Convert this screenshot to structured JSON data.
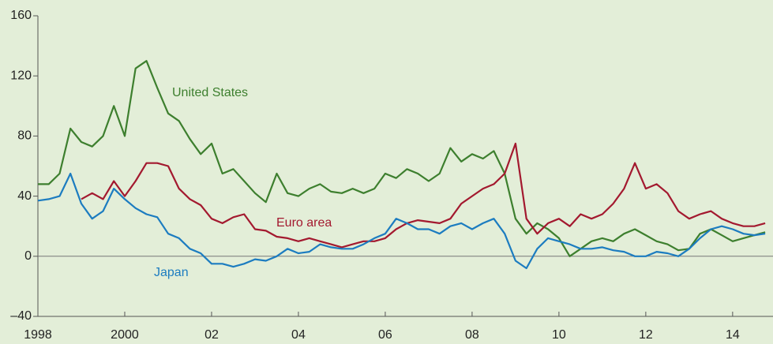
{
  "chart_data": {
    "type": "line",
    "x": [
      1998,
      1998.25,
      1998.5,
      1998.75,
      1999,
      1999.25,
      1999.5,
      1999.75,
      2000,
      2000.25,
      2000.5,
      2000.75,
      2001,
      2001.25,
      2001.5,
      2001.75,
      2002,
      2002.25,
      2002.5,
      2002.75,
      2003,
      2003.25,
      2003.5,
      2003.75,
      2004,
      2004.25,
      2004.5,
      2004.75,
      2005,
      2005.25,
      2005.5,
      2005.75,
      2006,
      2006.25,
      2006.5,
      2006.75,
      2007,
      2007.25,
      2007.5,
      2007.75,
      2008,
      2008.25,
      2008.5,
      2008.75,
      2009,
      2009.25,
      2009.5,
      2009.75,
      2010,
      2010.25,
      2010.5,
      2010.75,
      2011,
      2011.25,
      2011.5,
      2011.75,
      2012,
      2012.25,
      2012.5,
      2012.75,
      2013,
      2013.25,
      2013.5,
      2013.75,
      2014,
      2014.25,
      2014.5,
      2014.75
    ],
    "series": [
      {
        "name": "United States",
        "color": "#3d7f2e",
        "values": [
          48,
          48,
          55,
          85,
          76,
          73,
          80,
          100,
          80,
          125,
          130,
          112,
          95,
          90,
          78,
          68,
          75,
          55,
          58,
          50,
          42,
          36,
          55,
          42,
          40,
          45,
          48,
          43,
          42,
          45,
          42,
          45,
          55,
          52,
          58,
          55,
          50,
          55,
          72,
          63,
          68,
          65,
          70,
          55,
          25,
          15,
          22,
          18,
          12,
          0,
          5,
          10,
          12,
          10,
          15,
          18,
          14,
          10,
          8,
          4,
          5,
          15,
          18,
          14,
          10,
          12,
          14,
          16
        ]
      },
      {
        "name": "Euro area",
        "color": "#a3192f",
        "values": [
          null,
          null,
          null,
          null,
          38,
          42,
          38,
          50,
          40,
          50,
          62,
          62,
          60,
          45,
          38,
          34,
          25,
          22,
          26,
          28,
          18,
          17,
          13,
          12,
          10,
          12,
          10,
          8,
          6,
          8,
          10,
          10,
          12,
          18,
          22,
          24,
          23,
          22,
          25,
          35,
          40,
          45,
          48,
          55,
          75,
          25,
          15,
          22,
          25,
          20,
          28,
          25,
          28,
          35,
          45,
          62,
          45,
          48,
          42,
          30,
          25,
          28,
          30,
          25,
          22,
          20,
          20,
          22
        ]
      },
      {
        "name": "Japan",
        "color": "#1c7cc0",
        "values": [
          37,
          38,
          40,
          55,
          35,
          25,
          30,
          45,
          38,
          32,
          28,
          26,
          15,
          12,
          5,
          2,
          -5,
          -5,
          -7,
          -5,
          -2,
          -3,
          0,
          5,
          2,
          3,
          8,
          6,
          5,
          5,
          8,
          12,
          15,
          25,
          22,
          18,
          18,
          15,
          20,
          22,
          18,
          22,
          25,
          15,
          -3,
          -8,
          5,
          12,
          10,
          8,
          5,
          5,
          6,
          4,
          3,
          0,
          0,
          3,
          2,
          0,
          5,
          12,
          18,
          20,
          18,
          15,
          14,
          15
        ]
      }
    ],
    "xlim": [
      1998,
      2014.93
    ],
    "xticks": [
      1998,
      2000,
      {
        "value": 2002,
        "label": "02"
      },
      {
        "value": 2004,
        "label": "04"
      },
      {
        "value": 2006,
        "label": "06"
      },
      {
        "value": 2008,
        "label": "08"
      },
      {
        "value": 2010,
        "label": "10"
      },
      {
        "value": 2012,
        "label": "12"
      },
      {
        "value": 2014,
        "label": "14"
      }
    ],
    "ylim": [
      -40,
      160
    ],
    "yticks": [
      {
        "value": -40,
        "label": "–40"
      },
      0,
      40,
      80,
      120,
      160
    ]
  }
}
